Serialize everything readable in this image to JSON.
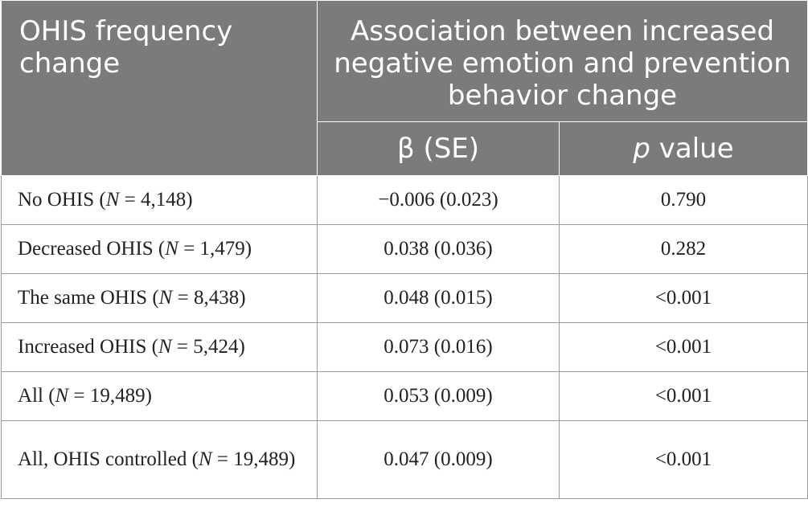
{
  "header": {
    "row_label": "OHIS frequency change",
    "group_label": "Association between increased negative emotion and prevention behavior change",
    "col_beta": "β (SE)",
    "col_p_italic": "p",
    "col_p_rest": " value"
  },
  "rows": [
    {
      "label_pre": "No OHIS (",
      "label_n": "N",
      "label_post": " = 4,148)",
      "beta": "−0.006 (0.023)",
      "p": "0.790"
    },
    {
      "label_pre": "Decreased OHIS (",
      "label_n": "N",
      "label_post": " = 1,479)",
      "beta": "0.038 (0.036)",
      "p": "0.282"
    },
    {
      "label_pre": "The same OHIS (",
      "label_n": "N",
      "label_post": " = 8,438)",
      "beta": "0.048 (0.015)",
      "p": "<0.001"
    },
    {
      "label_pre": "Increased OHIS (",
      "label_n": "N",
      "label_post": " = 5,424)",
      "beta": "0.073 (0.016)",
      "p": "<0.001"
    },
    {
      "label_pre": "All (",
      "label_n": "N",
      "label_post": " = 19,489)",
      "beta": "0.053 (0.009)",
      "p": "<0.001"
    },
    {
      "label_pre": "All, OHIS controlled (",
      "label_n": "N",
      "label_post": " = 19,489)",
      "beta": "0.047 (0.009)",
      "p": "<0.001"
    }
  ]
}
